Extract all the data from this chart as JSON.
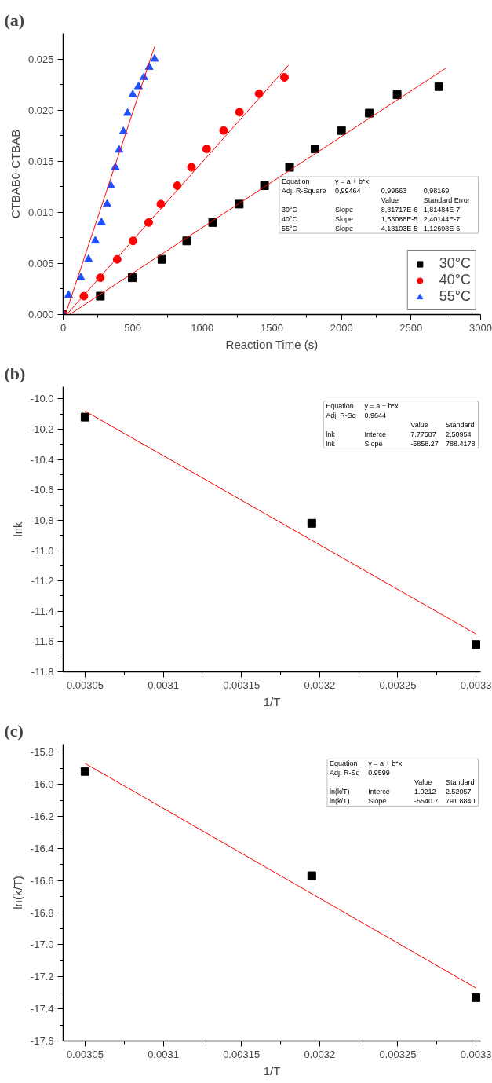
{
  "chart_data": [
    {
      "type": "scatter",
      "title": "(a)",
      "xlabel": "Reaction Time (s)",
      "ylabel": "CTBAB0-CTBAB",
      "xlim": [
        0,
        3000
      ],
      "ylim": [
        0,
        0.0275
      ],
      "xticks": [
        0,
        500,
        1000,
        1500,
        2000,
        2500,
        3000
      ],
      "yticks": [
        {
          "value": 0,
          "label": "0.000"
        },
        {
          "value": 0.005,
          "label": "0.005"
        },
        {
          "value": 0.01,
          "label": "0.010"
        },
        {
          "value": 0.015,
          "label": "0.015"
        },
        {
          "value": 0.02,
          "label": "0.020"
        },
        {
          "value": 0.025,
          "label": "0.025"
        }
      ],
      "grid": false,
      "legend": "bottom right",
      "series": [
        {
          "name": "30°C",
          "color": "#000000",
          "marker": "square",
          "x": [
            0,
            267,
            496,
            710,
            888,
            1075,
            1265,
            1447,
            1627,
            1810,
            2000,
            2200,
            2400,
            2700
          ],
          "values": [
            0,
            0.0018,
            0.0036,
            0.0054,
            0.0072,
            0.009,
            0.0108,
            0.0126,
            0.0144,
            0.0162,
            0.018,
            0.0197,
            0.0215,
            0.0223
          ]
        },
        {
          "name": "40°C",
          "color": "#ff0000",
          "marker": "circle",
          "x": [
            0,
            149,
            267,
            388,
            502,
            614,
            702,
            820,
            922,
            1031,
            1153,
            1267,
            1408,
            1590
          ],
          "values": [
            0,
            0.0018,
            0.0036,
            0.0054,
            0.0072,
            0.009,
            0.0108,
            0.0126,
            0.0144,
            0.0162,
            0.018,
            0.0198,
            0.0216,
            0.0232
          ]
        },
        {
          "name": "55°C",
          "color": "#1f4fff",
          "marker": "triangle",
          "x": [
            0,
            39,
            127,
            182,
            231,
            275,
            316,
            343,
            375,
            402,
            433,
            463,
            500,
            541,
            580,
            618,
            657
          ],
          "values": [
            0,
            0.0019,
            0.0036,
            0.0054,
            0.0072,
            0.009,
            0.0108,
            0.0126,
            0.0144,
            0.0161,
            0.0179,
            0.0197,
            0.0215,
            0.0223,
            0.0232,
            0.0242,
            0.025
          ]
        },
        {
          "type": "line",
          "color": "#ff0000",
          "marker": "none",
          "x": [
            45,
            2750
          ],
          "values": [
            0,
            0.0241
          ]
        },
        {
          "type": "line",
          "color": "#ff0000",
          "marker": "none",
          "x": [
            25,
            1620
          ],
          "values": [
            0,
            0.0244
          ]
        },
        {
          "type": "line",
          "color": "#ff0000",
          "marker": "none",
          "x": [
            16,
            657
          ],
          "values": [
            0,
            0.0262
          ]
        }
      ],
      "annotations": [
        "Equation\ty = a + b*x\t\t",
        "Adj. R-Square\t0,99464\t0,99663\t0,98169",
        "\t\tValue\tStandard Error",
        "30°C\tSlope\t8,81717E-6\t1,81484E-7",
        "40°C\tSlope\t1,53088E-5\t2,40144E-7",
        "55°C\tSlope\t4,18103E-5\t1,12698E-6"
      ]
    },
    {
      "type": "scatter",
      "title": "(b)",
      "xlabel": "1/T",
      "ylabel": "lnk",
      "xlim": [
        0.003036,
        0.003303
      ],
      "ylim": [
        -11.8,
        -9.92
      ],
      "xticks": [
        0.00305,
        0.0031,
        0.00315,
        0.0032,
        0.00325,
        0.0033
      ],
      "yticks": [
        {
          "value": -11.8,
          "label": "-11.8"
        },
        {
          "value": -11.6,
          "label": "-11.6"
        },
        {
          "value": -11.4,
          "label": "-11.4"
        },
        {
          "value": -11.2,
          "label": "-11.2"
        },
        {
          "value": -11,
          "label": "-11.0"
        },
        {
          "value": -10.8,
          "label": "-10.8"
        },
        {
          "value": -10.6,
          "label": "-10.6"
        },
        {
          "value": -10.4,
          "label": "-10.4"
        },
        {
          "value": -10.2,
          "label": "-10.2"
        },
        {
          "value": -10,
          "label": "-10.0"
        }
      ],
      "grid": false,
      "series": [
        {
          "color": "#000000",
          "marker": "square",
          "x": [
            0.00305,
            0.003195,
            0.0033
          ],
          "values": [
            -10.12,
            -10.82,
            -11.62
          ]
        },
        {
          "type": "line",
          "color": "#ff0000",
          "marker": "none",
          "x": [
            0.00305,
            0.0033
          ],
          "values": [
            -10.08,
            -11.55
          ]
        }
      ],
      "annotations": [
        "Equation\ty = a + b*x\t\t",
        "Adj. R-Sq\t0.9644\t\t",
        "\t\tValue\tStandard",
        "lnk\tInterce\t7.77587\t2.50954",
        "lnk\tSlope\t-5858.27\t788.4178"
      ]
    },
    {
      "type": "scatter",
      "title": "(c)",
      "xlabel": "1/T",
      "ylabel": "ln(k/T)",
      "xlim": [
        0.003036,
        0.003303
      ],
      "ylim": [
        -17.6,
        -15.75
      ],
      "xticks": [
        0.00305,
        0.0031,
        0.00315,
        0.0032,
        0.00325,
        0.0033
      ],
      "yticks": [
        {
          "value": -17.6,
          "label": "-17.6"
        },
        {
          "value": -17.4,
          "label": "-17.4"
        },
        {
          "value": -17.2,
          "label": "-17.2"
        },
        {
          "value": -17,
          "label": "-17.0"
        },
        {
          "value": -16.8,
          "label": "-16.8"
        },
        {
          "value": -16.6,
          "label": "-16.6"
        },
        {
          "value": -16.4,
          "label": "-16.4"
        },
        {
          "value": -16.2,
          "label": "-16.2"
        },
        {
          "value": -16,
          "label": "-16.0"
        },
        {
          "value": -15.8,
          "label": "-15.8"
        }
      ],
      "grid": false,
      "series": [
        {
          "color": "#000000",
          "marker": "square",
          "x": [
            0.00305,
            0.003195,
            0.0033
          ],
          "values": [
            -15.92,
            -16.57,
            -17.33
          ]
        },
        {
          "type": "line",
          "color": "#ff0000",
          "marker": "none",
          "x": [
            0.00305,
            0.0033
          ],
          "values": [
            -15.87,
            -17.27
          ]
        }
      ],
      "annotations": [
        "Equation\ty = a + b*x\t\t",
        "Adj. R-Sq\t0.9599\t\t",
        "\t\tValue\tStandard",
        "ln(k/T)\tInterce\t1.0212\t2.52057",
        "ln(k/T)\tSlope\t-5540.7\t791.8840"
      ]
    }
  ]
}
